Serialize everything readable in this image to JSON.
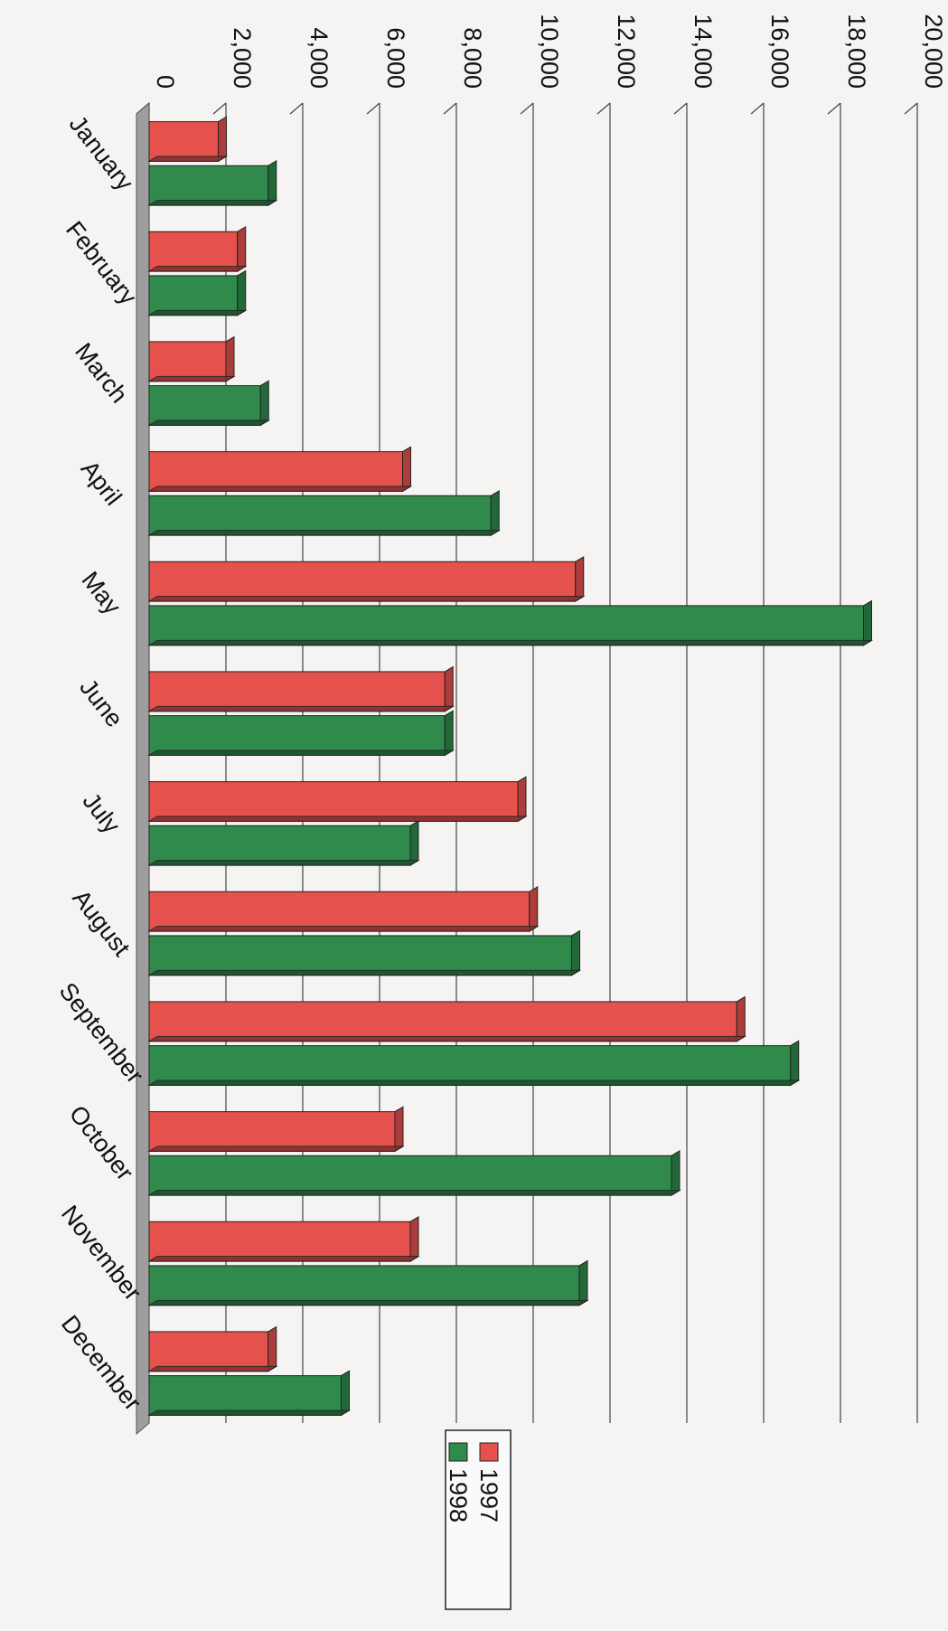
{
  "chart_data": {
    "type": "bar",
    "title": "",
    "xlabel": "",
    "ylabel": "",
    "orientation": "rotated 90° clockwise (page scanned sideways)",
    "categories": [
      "January",
      "February",
      "March",
      "April",
      "May",
      "June",
      "July",
      "August",
      "September",
      "October",
      "November",
      "December"
    ],
    "series": [
      {
        "name": "1997",
        "color": "#e5514d",
        "values": [
          1800,
          2300,
          2000,
          6600,
          11100,
          7700,
          9600,
          9900,
          15300,
          6400,
          6800,
          3100
        ]
      },
      {
        "name": "1998",
        "color": "#2f8a4c",
        "values": [
          3100,
          2300,
          2900,
          8900,
          18600,
          7700,
          6800,
          11000,
          16700,
          13600,
          11200,
          5000
        ]
      }
    ],
    "ylim": [
      0,
      20000
    ],
    "yticks": [
      "0",
      "2,000",
      "4,000",
      "6,000",
      "8,000",
      "10,000",
      "12,000",
      "14,000",
      "16,000",
      "18,000",
      "20,000"
    ],
    "grid": true,
    "legend": "bottom-right"
  }
}
